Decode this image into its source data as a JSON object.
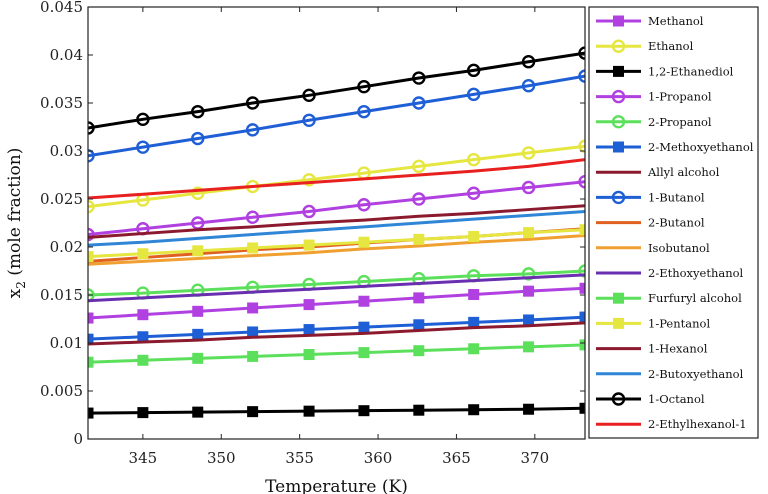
{
  "chart_data": {
    "type": "line",
    "title": "",
    "xlabel": "Temperature (K)",
    "ylabel_main": "x",
    "ylabel_sub": "2",
    "ylabel_rest": " (mole fraction)",
    "xlim": [
      341.5,
      373.2
    ],
    "ylim": [
      0,
      0.045
    ],
    "xticks": [
      "345",
      "350",
      "355",
      "360",
      "365",
      "370"
    ],
    "yticks": [
      "0",
      "0.005",
      "0.01",
      "0.015",
      "0.02",
      "0.025",
      "0.03",
      "0.035",
      "0.04",
      "0.045"
    ],
    "x_marker_values": [
      341.5,
      345,
      348.5,
      352,
      355.6,
      359.1,
      362.6,
      366.1,
      369.6,
      373.2
    ],
    "legend_position": "right",
    "series": [
      {
        "name": "Methanol",
        "color": "#b040e0",
        "marker": "square",
        "y": [
          0.0126,
          0.01295,
          0.0133,
          0.01365,
          0.014,
          0.01435,
          0.0147,
          0.01505,
          0.0154,
          0.0157
        ]
      },
      {
        "name": "Ethanol",
        "color": "#e6e640",
        "marker": "circle",
        "y": [
          0.0242,
          0.0249,
          0.0256,
          0.0263,
          0.027,
          0.0277,
          0.0284,
          0.0291,
          0.0298,
          0.0305
        ]
      },
      {
        "name": "1,2-Ethanediol",
        "color": "#000000",
        "marker": "square",
        "y": [
          0.0027,
          0.00275,
          0.0028,
          0.00285,
          0.0029,
          0.00295,
          0.003,
          0.00305,
          0.0031,
          0.0032
        ]
      },
      {
        "name": "1-Propanol",
        "color": "#b040e0",
        "marker": "circle",
        "y": [
          0.0213,
          0.0219,
          0.0225,
          0.0231,
          0.0237,
          0.0244,
          0.025,
          0.0256,
          0.0262,
          0.0268
        ]
      },
      {
        "name": "2-Propanol",
        "color": "#5ce05c",
        "marker": "circle",
        "y": [
          0.015,
          0.0152,
          0.0155,
          0.0158,
          0.0161,
          0.0164,
          0.0167,
          0.017,
          0.0172,
          0.0175
        ]
      },
      {
        "name": "2-Methoxyethanol",
        "color": "#1f5fd6",
        "marker": "square",
        "y": [
          0.0104,
          0.01065,
          0.0109,
          0.01115,
          0.0114,
          0.01165,
          0.0119,
          0.01215,
          0.0124,
          0.0127
        ]
      },
      {
        "name": "Allyl alcohol",
        "color": "#8b1a2e",
        "marker": "none",
        "y": [
          0.021,
          0.0214,
          0.0218,
          0.0221,
          0.0225,
          0.0228,
          0.0232,
          0.0235,
          0.0239,
          0.0243
        ]
      },
      {
        "name": "1-Butanol",
        "color": "#1f5fd6",
        "marker": "circle",
        "y": [
          0.0295,
          0.0304,
          0.0313,
          0.0322,
          0.0332,
          0.0341,
          0.035,
          0.0359,
          0.0368,
          0.0378
        ]
      },
      {
        "name": "2-Butanol",
        "color": "#e06020",
        "marker": "none",
        "y": [
          0.0185,
          0.0189,
          0.0193,
          0.0197,
          0.02,
          0.0204,
          0.0208,
          0.0211,
          0.0215,
          0.0219
        ]
      },
      {
        "name": "Isobutanol",
        "color": "#f0a030",
        "marker": "none",
        "y": [
          0.0182,
          0.0185,
          0.0188,
          0.0191,
          0.0194,
          0.0198,
          0.0201,
          0.0205,
          0.0208,
          0.0212
        ]
      },
      {
        "name": "2-Ethoxyethanol",
        "color": "#6a2fb0",
        "marker": "none",
        "y": [
          0.0144,
          0.0147,
          0.015,
          0.0153,
          0.0156,
          0.0159,
          0.0162,
          0.0165,
          0.0168,
          0.0171
        ]
      },
      {
        "name": "Furfuryl alcohol",
        "color": "#5ce05c",
        "marker": "square",
        "y": [
          0.008,
          0.0082,
          0.0084,
          0.0086,
          0.0088,
          0.009,
          0.0092,
          0.0094,
          0.0096,
          0.0098
        ]
      },
      {
        "name": "1-Pentanol",
        "color": "#e6e640",
        "marker": "square",
        "y": [
          0.019,
          0.0193,
          0.0196,
          0.0199,
          0.0202,
          0.0205,
          0.0208,
          0.0211,
          0.0215,
          0.0218
        ]
      },
      {
        "name": "1-Hexanol",
        "color": "#8b1a2e",
        "marker": "none",
        "y": [
          0.0099,
          0.0101,
          0.0103,
          0.0106,
          0.0108,
          0.011,
          0.0113,
          0.0116,
          0.0118,
          0.0121
        ]
      },
      {
        "name": "2-Butoxyethanol",
        "color": "#2f86d6",
        "marker": "none",
        "y": [
          0.0202,
          0.0205,
          0.0209,
          0.0213,
          0.0217,
          0.0221,
          0.0225,
          0.0229,
          0.0233,
          0.0237
        ]
      },
      {
        "name": "1-Octanol",
        "color": "#000000",
        "marker": "circle",
        "y": [
          0.0324,
          0.0333,
          0.0341,
          0.035,
          0.0358,
          0.0367,
          0.0376,
          0.0384,
          0.0393,
          0.0402
        ]
      },
      {
        "name": "2-Ethylhexanol-1",
        "color": "#e82020",
        "marker": "none",
        "y": [
          0.0251,
          0.0255,
          0.0259,
          0.0263,
          0.0267,
          0.0271,
          0.0275,
          0.0279,
          0.0284,
          0.0291
        ]
      }
    ]
  }
}
